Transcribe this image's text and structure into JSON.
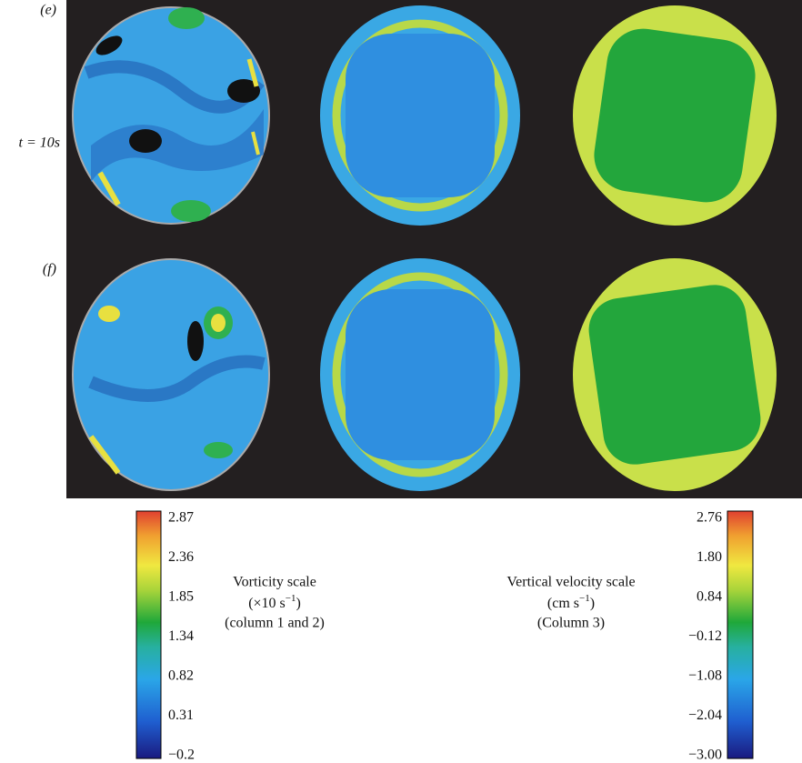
{
  "panels": {
    "row1_label": "(e)",
    "row1_time": "t = 10s",
    "row2_label": "(f)"
  },
  "vorticity_scale": {
    "ticks": [
      "2.87",
      "2.36",
      "1.85",
      "1.34",
      "0.82",
      "0.31",
      "−0.2"
    ],
    "title": "Vorticity scale",
    "unit_open": "(×10 s",
    "unit_sup": "−1",
    "unit_close": ")",
    "note": "(column 1 and 2)"
  },
  "velocity_scale": {
    "ticks": [
      "2.76",
      "1.80",
      "0.84",
      "−0.12",
      "−1.08",
      "−2.04",
      "−3.00"
    ],
    "title": "Vertical velocity scale",
    "unit_open": "(cm s",
    "unit_sup": "−1",
    "unit_close": ")",
    "note": "(Column 3)"
  }
}
